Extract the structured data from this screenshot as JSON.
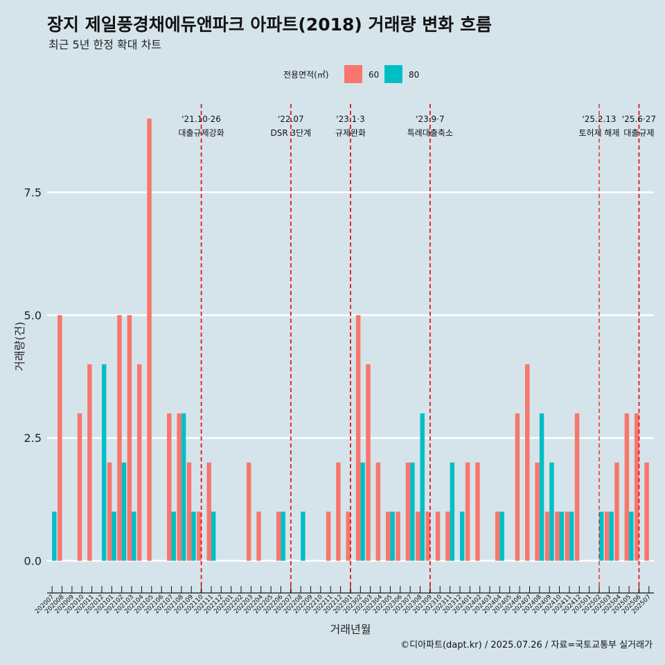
{
  "chart_data": {
    "type": "bar",
    "title": "장지 제일풍경채에듀앤파크 아파트(2018) 거래량 변화 흐름",
    "subtitle": "최근 5년 한정 확대 차트",
    "xlabel": "거래년월",
    "ylabel": "거래량(건)",
    "ylim": [
      -0.5,
      9.3
    ],
    "yticks": [
      0.0,
      2.5,
      5.0,
      7.5
    ],
    "ytick_labels": [
      "0.0",
      "2.5",
      "5.0",
      "7.5"
    ],
    "legend": {
      "title": "전용면적(㎡)",
      "position": "top",
      "entries": [
        {
          "name": "60",
          "color": "#f8766d"
        },
        {
          "name": "80",
          "color": "#00bfc4"
        }
      ]
    },
    "categories": [
      "202007",
      "202008",
      "202009",
      "202010",
      "202011",
      "202012",
      "202101",
      "202102",
      "202103",
      "202104",
      "202105",
      "202106",
      "202107",
      "202108",
      "202109",
      "202110",
      "202111",
      "202112",
      "202201",
      "202202",
      "202203",
      "202204",
      "202205",
      "202206",
      "202207",
      "202208",
      "202209",
      "202210",
      "202211",
      "202212",
      "202301",
      "202302",
      "202303",
      "202304",
      "202305",
      "202306",
      "202307",
      "202308",
      "202309",
      "202310",
      "202311",
      "202312",
      "202401",
      "202402",
      "202403",
      "202404",
      "202405",
      "202406",
      "202407",
      "202408",
      "202409",
      "202410",
      "202411",
      "202412",
      "202501",
      "202502",
      "202503",
      "202504",
      "202505",
      "202506",
      "202507"
    ],
    "series": [
      {
        "name": "60",
        "color": "#f8766d",
        "values": [
          0,
          5,
          0,
          3,
          4,
          0,
          2,
          5,
          5,
          4,
          9,
          0,
          3,
          3,
          2,
          1,
          2,
          0,
          0,
          0,
          2,
          1,
          0,
          1,
          0,
          0,
          0,
          0,
          1,
          2,
          1,
          5,
          4,
          2,
          1,
          1,
          2,
          1,
          1,
          1,
          1,
          0,
          2,
          2,
          0,
          1,
          0,
          3,
          4,
          2,
          1,
          1,
          1,
          3,
          0,
          0,
          1,
          2,
          3,
          3,
          2
        ]
      },
      {
        "name": "80",
        "color": "#00bfc4",
        "values": [
          1,
          0,
          0,
          0,
          0,
          4,
          1,
          2,
          1,
          0,
          0,
          0,
          1,
          3,
          1,
          0,
          1,
          0,
          0,
          0,
          0,
          0,
          0,
          1,
          0,
          1,
          0,
          0,
          0,
          0,
          0,
          2,
          0,
          0,
          1,
          0,
          2,
          3,
          0,
          0,
          2,
          1,
          0,
          0,
          0,
          1,
          0,
          0,
          0,
          3,
          2,
          1,
          1,
          0,
          0,
          1,
          1,
          0,
          1,
          0,
          0
        ]
      }
    ],
    "annotations": [
      {
        "x": "202110",
        "date": "'21.10·26",
        "label": "대출규제강화",
        "small": false
      },
      {
        "x": "202207",
        "date": "'22.07",
        "label": "DSR 3단계",
        "small": false
      },
      {
        "x": "202301",
        "date": "'23.1·3",
        "label": "규제완화",
        "small": false
      },
      {
        "x": "202309",
        "date": "'23.9·7",
        "label": "특례대출축소",
        "small": false
      },
      {
        "x": "202502",
        "date": "'25.2.13",
        "label": "토허제 해제",
        "small": true
      },
      {
        "x": "202506",
        "date": "'25.6·27",
        "label": "대출규제",
        "small": false
      }
    ]
  },
  "caption": "©디아파트(dapt.kr) / 2025.07.26 / 자료=국토교통부 실거래가"
}
